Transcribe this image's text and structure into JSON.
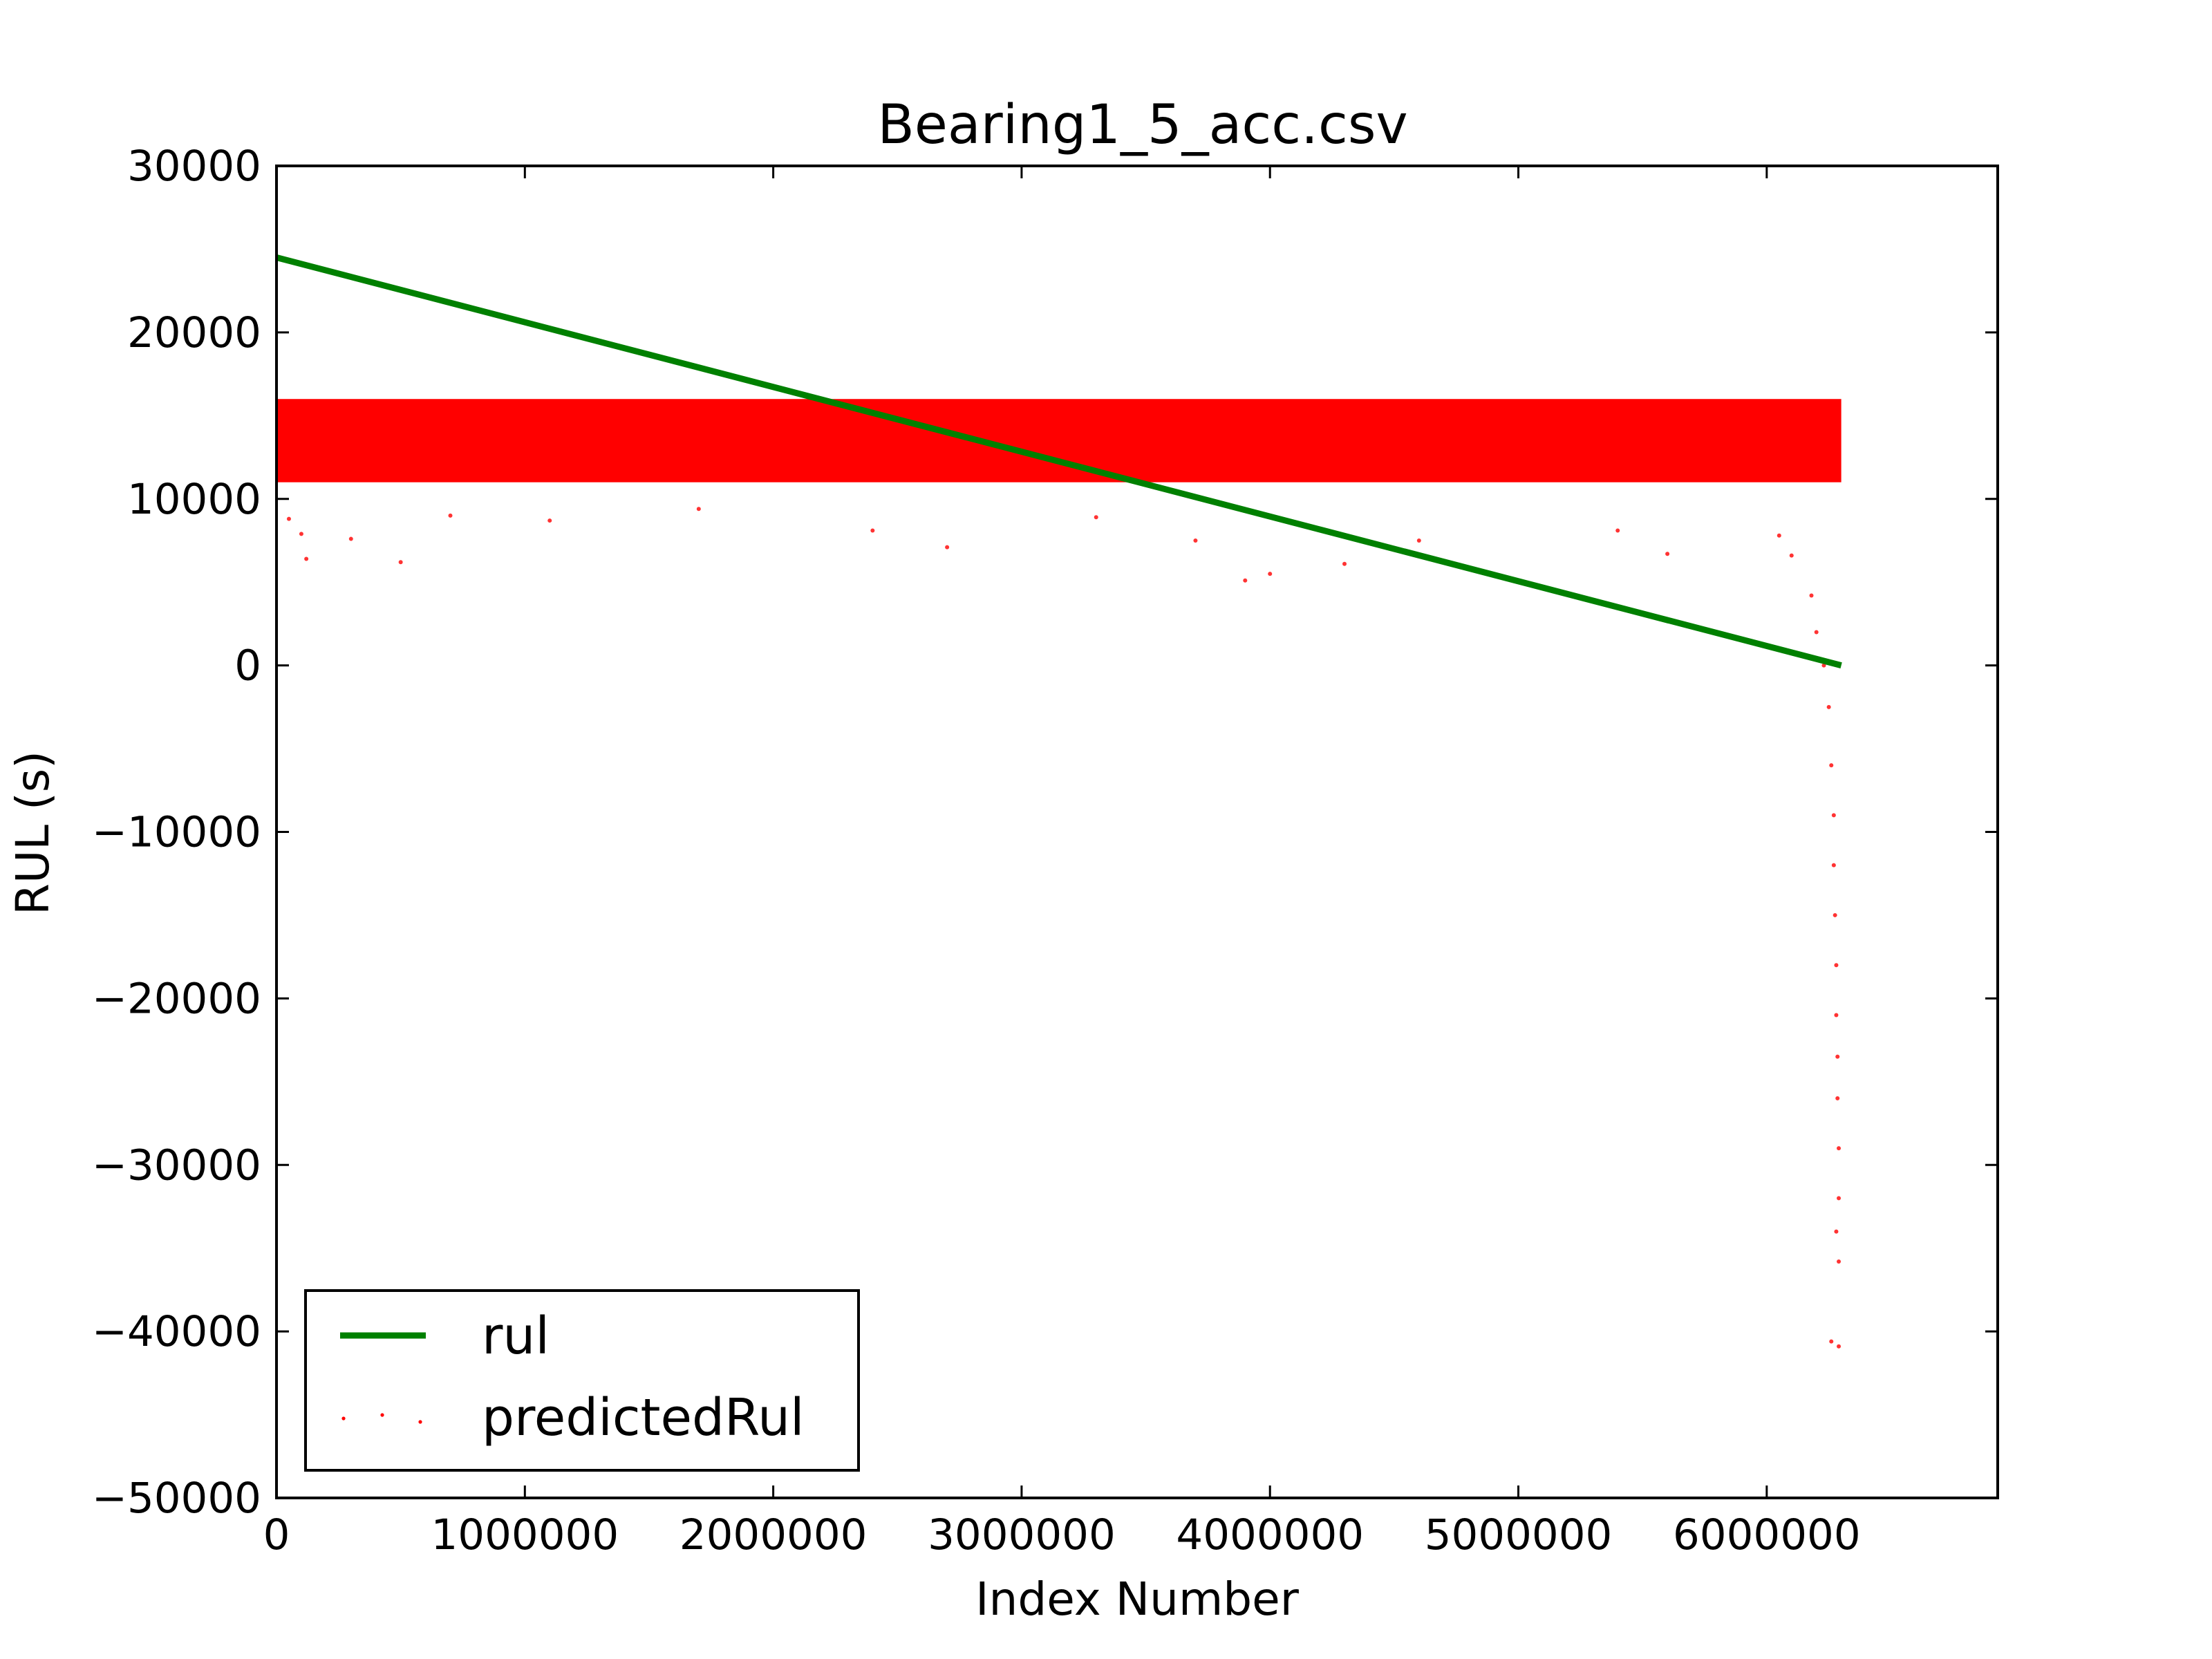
{
  "chart_data": {
    "type": "scatter",
    "title": "Bearing1_5_acc.csv",
    "xlabel": "Index Number",
    "ylabel": "RUL (s)",
    "xlim": [
      0,
      6930000
    ],
    "ylim": [
      -50000,
      30000
    ],
    "xticks": [
      0,
      1000000,
      2000000,
      3000000,
      4000000,
      5000000,
      6000000
    ],
    "xtick_labels": [
      "0",
      "1000000",
      "2000000",
      "3000000",
      "4000000",
      "5000000",
      "6000000"
    ],
    "yticks": [
      30000,
      20000,
      10000,
      0,
      -10000,
      -20000,
      -30000,
      -40000,
      -50000
    ],
    "ytick_labels": [
      "30000",
      "20000",
      "10000",
      "0",
      "−10000",
      "−20000",
      "−30000",
      "−40000",
      "−50000"
    ],
    "grid": false,
    "legend_position": "lower-left",
    "series": [
      {
        "name": "rul",
        "kind": "line",
        "color": "#008000",
        "x": [
          0,
          6300000
        ],
        "y": [
          24500,
          0
        ]
      },
      {
        "name": "predictedRul",
        "kind": "scatter",
        "color": "#ff0000",
        "dense_band": {
          "x": [
            0,
            6300000
          ],
          "y_top": 16000,
          "y_bottom_approx": 11000
        },
        "points": [
          [
            50000,
            8800
          ],
          [
            100000,
            7900
          ],
          [
            120000,
            6400
          ],
          [
            300000,
            7600
          ],
          [
            500000,
            6200
          ],
          [
            700000,
            9000
          ],
          [
            1100000,
            8700
          ],
          [
            1700000,
            9400
          ],
          [
            2400000,
            8100
          ],
          [
            2700000,
            7100
          ],
          [
            3300000,
            8900
          ],
          [
            3700000,
            7500
          ],
          [
            3900000,
            5100
          ],
          [
            4000000,
            5500
          ],
          [
            4300000,
            6100
          ],
          [
            4600000,
            7500
          ],
          [
            5400000,
            8100
          ],
          [
            5600000,
            6700
          ],
          [
            6050000,
            7800
          ],
          [
            6100000,
            6600
          ],
          [
            6180000,
            4200
          ],
          [
            6200000,
            2000
          ],
          [
            6230000,
            0
          ],
          [
            6250000,
            -2500
          ],
          [
            6260000,
            -6000
          ],
          [
            6270000,
            -9000
          ],
          [
            6270000,
            -12000
          ],
          [
            6275000,
            -15000
          ],
          [
            6280000,
            -18000
          ],
          [
            6280000,
            -21000
          ],
          [
            6285000,
            -23500
          ],
          [
            6285000,
            -26000
          ],
          [
            6290000,
            -29000
          ],
          [
            6290000,
            -32000
          ],
          [
            6280000,
            -34000
          ],
          [
            6290000,
            -35800
          ],
          [
            6260000,
            -40600
          ],
          [
            6290000,
            -40900
          ]
        ]
      }
    ]
  }
}
